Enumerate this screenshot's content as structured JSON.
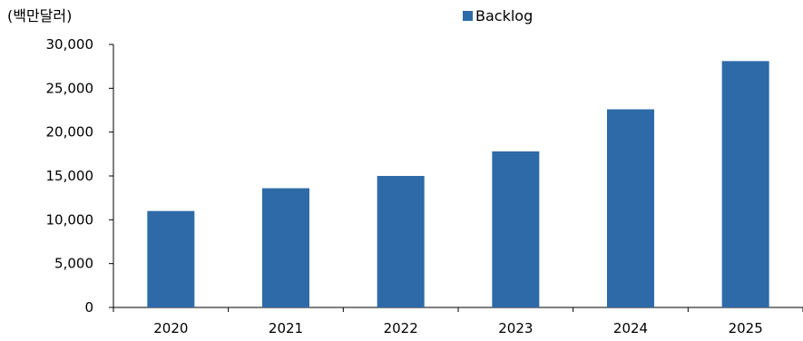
{
  "chart_data": {
    "type": "bar",
    "title": "",
    "unit_label": "(백만달러)",
    "xlabel": "",
    "ylabel": "",
    "categories": [
      "2020",
      "2021",
      "2022",
      "2023",
      "2024",
      "2025"
    ],
    "series": [
      {
        "name": "Backlog",
        "color": "#2E6AA8",
        "values": [
          11000,
          13600,
          15000,
          17800,
          22600,
          28100
        ]
      }
    ],
    "ylim": [
      0,
      30000
    ],
    "yticks": [
      0,
      5000,
      10000,
      15000,
      20000,
      25000,
      30000
    ],
    "ytick_labels": [
      "0",
      "5,000",
      "10,000",
      "15,000",
      "20,000",
      "25,000",
      "30,000"
    ],
    "grid": false,
    "legend_position": "top-center"
  }
}
